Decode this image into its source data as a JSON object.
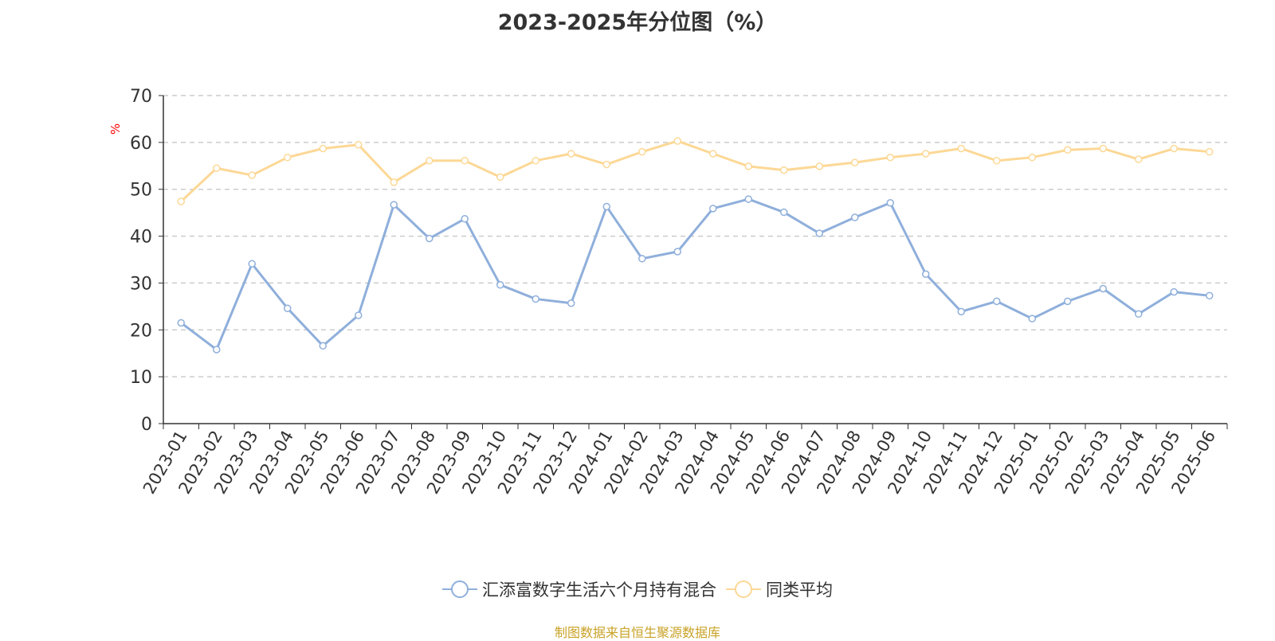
{
  "title": "2023-2025年分位图（%）",
  "source": "制图数据来自恒生聚源数据库",
  "colors": {
    "series1": "#8fafdb",
    "series2": "#fcd896",
    "ylabel": "#ff0000",
    "grid": "#cccccc",
    "axis": "#333333",
    "source": "#c9a227"
  },
  "chart_data": {
    "type": "line",
    "title": "2023-2025年分位图（%）",
    "xlabel": "",
    "ylabel": "%",
    "ylim": [
      0,
      70
    ],
    "yticks": [
      0,
      10,
      20,
      30,
      40,
      50,
      60,
      70
    ],
    "grid": true,
    "legend_position": "bottom-center",
    "categories": [
      "2023-01",
      "2023-02",
      "2023-03",
      "2023-04",
      "2023-05",
      "2023-06",
      "2023-07",
      "2023-08",
      "2023-09",
      "2023-10",
      "2023-11",
      "2023-12",
      "2024-01",
      "2024-02",
      "2024-03",
      "2024-04",
      "2024-05",
      "2024-06",
      "2024-07",
      "2024-08",
      "2024-09",
      "2024-10",
      "2024-11",
      "2024-12",
      "2025-01",
      "2025-02",
      "2025-03",
      "2025-04",
      "2025-05",
      "2025-06"
    ],
    "series": [
      {
        "name": "汇添富数字生活六个月持有混合",
        "values": [
          21.5,
          15.8,
          34.1,
          24.6,
          16.6,
          23.1,
          46.7,
          39.5,
          43.7,
          29.6,
          26.6,
          25.7,
          46.3,
          35.2,
          36.7,
          45.9,
          47.9,
          45.1,
          40.6,
          44.0,
          47.1,
          31.9,
          23.9,
          26.1,
          22.4,
          26.1,
          28.8,
          23.4,
          28.1,
          27.3
        ]
      },
      {
        "name": "同类平均",
        "values": [
          47.4,
          54.5,
          53.0,
          56.8,
          58.7,
          59.5,
          51.5,
          56.1,
          56.1,
          52.6,
          56.1,
          57.6,
          55.3,
          58.0,
          60.3,
          57.6,
          54.9,
          54.1,
          54.9,
          55.7,
          56.8,
          57.6,
          58.7,
          56.1,
          56.8,
          58.4,
          58.7,
          56.4,
          58.7,
          58.0
        ]
      }
    ]
  }
}
